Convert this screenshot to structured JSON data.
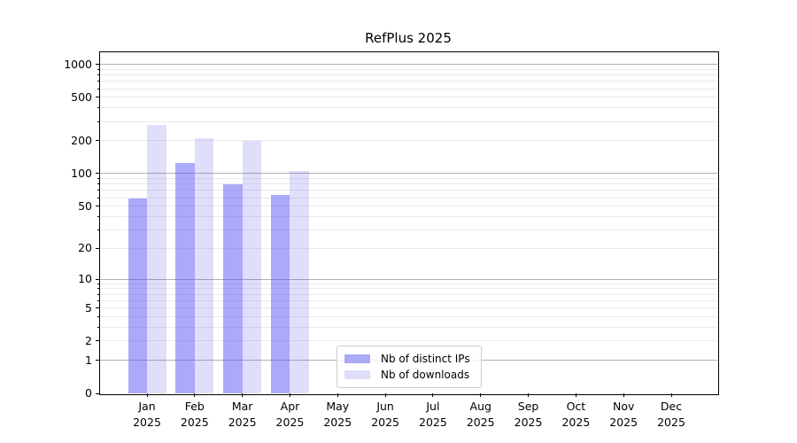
{
  "title": "RefPlus 2025",
  "chart_data": {
    "type": "bar",
    "title": "RefPlus 2025",
    "xlabel": "",
    "ylabel": "",
    "categories": [
      "Jan 2025",
      "Feb 2025",
      "Mar 2025",
      "Apr 2025",
      "May 2025",
      "Jun 2025",
      "Jul 2025",
      "Aug 2025",
      "Sep 2025",
      "Oct 2025",
      "Nov 2025",
      "Dec 2025"
    ],
    "series": [
      {
        "name": "Nb of distinct IPs",
        "values": [
          59,
          124,
          79,
          63,
          0,
          0,
          0,
          0,
          0,
          0,
          0,
          0
        ],
        "color": "#aaaaf7",
        "bar_fill": "rgba(85,85,241,0.50)"
      },
      {
        "name": "Nb of downloads",
        "values": [
          278,
          211,
          200,
          105,
          0,
          0,
          0,
          0,
          0,
          0,
          0,
          0
        ],
        "color": "#dedef9",
        "bar_fill": "rgba(85,85,241,0.19)"
      }
    ],
    "y_scale": "log1p",
    "y_ticks": [
      0,
      1,
      2,
      5,
      10,
      20,
      50,
      100,
      200,
      500,
      1000
    ],
    "y_major_gridlines": [
      1,
      10,
      100,
      1000
    ],
    "ylim": [
      0,
      1265
    ],
    "grid": "on",
    "legend_position": "lower-center"
  },
  "colors": {
    "grid_major": "#b0b0b0",
    "grid_minor": "#eaeaea",
    "axis": "#000000",
    "background": "#ffffff"
  }
}
